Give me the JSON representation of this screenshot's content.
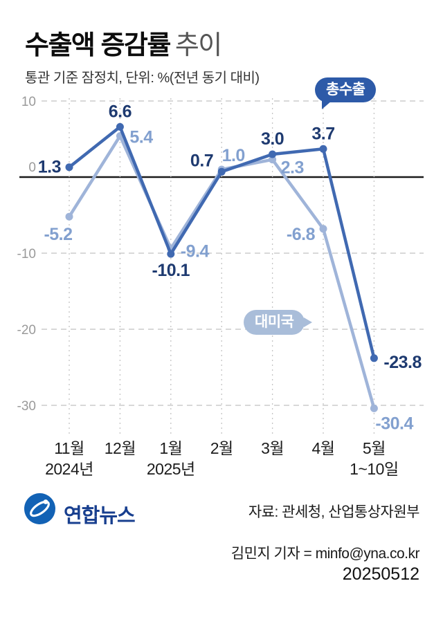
{
  "header": {
    "title_main": "수출액 증감률",
    "title_sub": "추이",
    "subtitle": "통관 기준 잠정치, 단위: %(전년 동기 대비)"
  },
  "chart_data": {
    "type": "line",
    "title": "수출액 증감률 추이",
    "unit_note": "통관 기준 잠정치, 단위: %(전년 동기 대비)",
    "categories": [
      "11월",
      "12월",
      "1월",
      "2월",
      "3월",
      "4월",
      "5월"
    ],
    "category_sub_labels": [
      "2024년",
      "",
      "2025년",
      "",
      "",
      "",
      "1~10일"
    ],
    "yticks": [
      10,
      0,
      -10,
      -20,
      -30
    ],
    "ylim": [
      -33,
      11
    ],
    "grid": {
      "horizontal": "dashed",
      "vertical": "dotted",
      "zero_line": "solid"
    },
    "series": [
      {
        "name": "총수출",
        "values": [
          1.3,
          6.6,
          -10.1,
          0.7,
          3.0,
          3.7,
          -23.8
        ],
        "labels": [
          "1.3",
          "6.6",
          "-10.1",
          "0.7",
          "3.0",
          "3.7",
          "-23.8"
        ],
        "color": "#4069b1",
        "label_color": "#1e3a70",
        "badge_color": "#2d5aa8"
      },
      {
        "name": "대미국",
        "values": [
          -5.2,
          5.4,
          -9.4,
          1.0,
          2.3,
          -6.8,
          -30.4
        ],
        "labels": [
          "-5.2",
          "5.4",
          "-9.4",
          "1.0",
          "2.3",
          "-6.8",
          "-30.4"
        ],
        "color": "#9fb4d9",
        "label_color": "#82a0cf",
        "badge_color": "#a9bdd9"
      }
    ],
    "legend_position": "badges-on-plot"
  },
  "footer": {
    "logo_name": "연합뉴스",
    "logo_color": "#1262b5",
    "logo_text_color": "#183f8f",
    "source": "자료: 관세청, 산업통상자원부",
    "byline": "김민지 기자 = minfo@yna.co.kr",
    "date": "20250512"
  }
}
